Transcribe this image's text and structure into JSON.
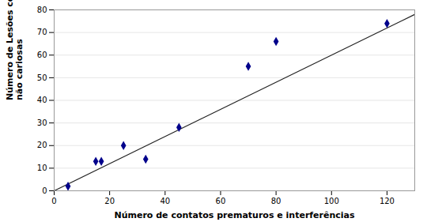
{
  "chart_data": {
    "type": "scatter",
    "xlabel": "Número de contatos prematuros e interferências",
    "ylabel": "Número de Lesões cervicais\nnão cariosas",
    "series": [
      {
        "type": "scatter",
        "x": [
          5,
          15,
          17,
          25,
          33,
          45,
          70,
          80,
          120
        ],
        "values": [
          2,
          13,
          13,
          20,
          14,
          28,
          55,
          66,
          74
        ],
        "color": "#00008B",
        "marker": "diamond"
      },
      {
        "type": "line",
        "x": [
          0,
          130
        ],
        "values": [
          0,
          78
        ],
        "color": "#222222"
      }
    ],
    "xlim": [
      0,
      130
    ],
    "ylim": [
      0,
      80
    ],
    "xticks": [
      0,
      20,
      40,
      60,
      80,
      100,
      120
    ],
    "yticks": [
      0,
      10,
      20,
      30,
      40,
      50,
      60,
      70,
      80
    ],
    "grid": "y"
  }
}
